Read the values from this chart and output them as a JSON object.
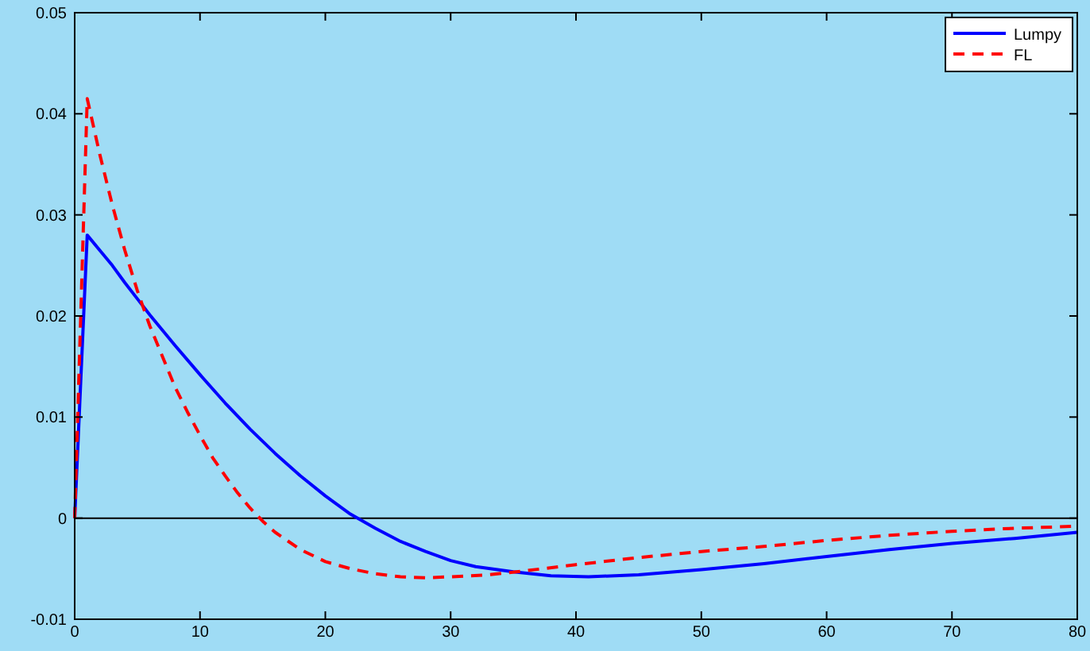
{
  "chart_data": {
    "type": "line",
    "xlim": [
      0,
      80
    ],
    "xticks": [
      0,
      10,
      20,
      30,
      40,
      50,
      60,
      70,
      80
    ],
    "ylim": [
      -0.01,
      0.05
    ],
    "yticks": [
      -0.01,
      0,
      0.01,
      0.02,
      0.03,
      0.04,
      0.05
    ],
    "grid": false,
    "legend": "top right",
    "ref_lines": [
      {
        "axis": "y",
        "value": 0,
        "color": "#000000",
        "line_style": "solid"
      }
    ],
    "series": [
      {
        "name": "Lumpy",
        "color": "#0000ff",
        "line_style": "solid",
        "x": [
          0,
          1,
          2,
          3,
          4,
          5,
          6,
          8,
          10,
          12,
          14,
          16,
          18,
          20,
          22,
          24,
          26,
          28,
          30,
          32,
          35,
          38,
          41,
          45,
          50,
          55,
          60,
          65,
          70,
          75,
          80
        ],
        "values": [
          0,
          0.028,
          0.0265,
          0.025,
          0.0233,
          0.0217,
          0.0201,
          0.0171,
          0.0142,
          0.0114,
          0.0088,
          0.0064,
          0.0042,
          0.0022,
          0.0004,
          -0.001,
          -0.0023,
          -0.0033,
          -0.0042,
          -0.0048,
          -0.0053,
          -0.0057,
          -0.0058,
          -0.0056,
          -0.0051,
          -0.0045,
          -0.0038,
          -0.0031,
          -0.0025,
          -0.002,
          -0.0014
        ]
      },
      {
        "name": "FL",
        "color": "#ff0000",
        "line_style": "dashed",
        "x": [
          0,
          1,
          2,
          3,
          4,
          5,
          6,
          7,
          8,
          9,
          10,
          11,
          12,
          13,
          14,
          15,
          16,
          18,
          20,
          22,
          24,
          26,
          28,
          30,
          33,
          36,
          40,
          45,
          50,
          55,
          60,
          65,
          70,
          75,
          80
        ],
        "values": [
          0,
          0.0415,
          0.036,
          0.031,
          0.0265,
          0.0225,
          0.019,
          0.016,
          0.013,
          0.0105,
          0.0082,
          0.006,
          0.0042,
          0.0025,
          0.001,
          -0.0003,
          -0.0014,
          -0.0031,
          -0.0043,
          -0.005,
          -0.0055,
          -0.0058,
          -0.0059,
          -0.0058,
          -0.0056,
          -0.0052,
          -0.0046,
          -0.0039,
          -0.0033,
          -0.0028,
          -0.0022,
          -0.0017,
          -0.0013,
          -0.001,
          -0.0008
        ]
      }
    ]
  }
}
